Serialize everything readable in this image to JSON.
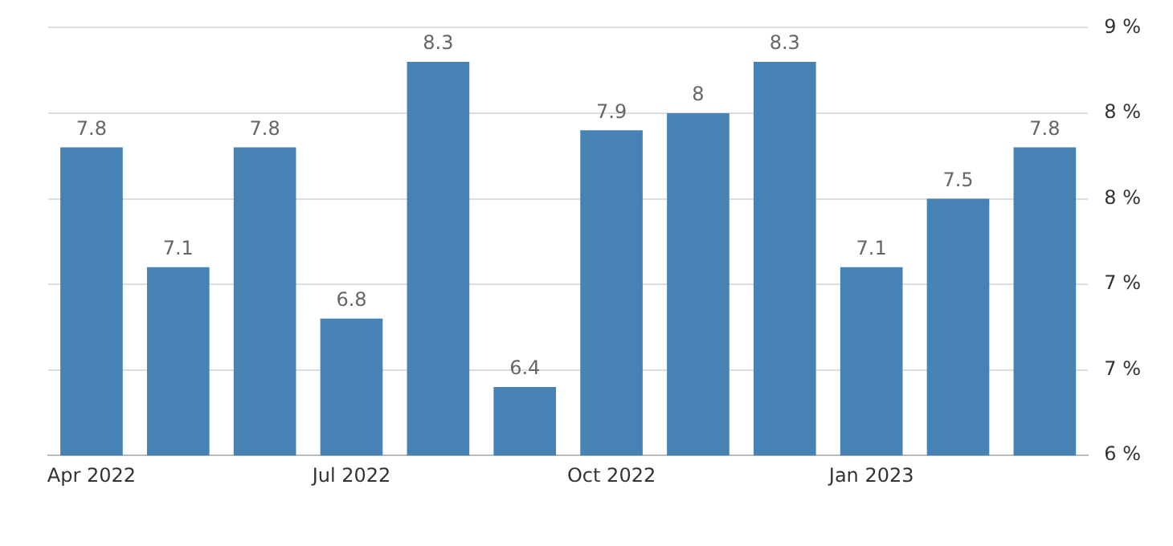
{
  "chart_data": {
    "type": "bar",
    "categories": [
      "Apr 2022",
      null,
      null,
      "Jul 2022",
      null,
      null,
      "Oct 2022",
      null,
      null,
      "Jan 2023",
      null,
      null
    ],
    "values": [
      7.8,
      7.1,
      7.8,
      6.8,
      8.3,
      6.4,
      7.9,
      8,
      8.3,
      7.1,
      7.5,
      7.8
    ],
    "color": "#4682b4",
    "ylim": [
      6,
      8.5
    ],
    "yticks": [
      {
        "value": 6,
        "label": "6 %"
      },
      {
        "value": 6.5,
        "label": "7 %"
      },
      {
        "value": 7,
        "label": "7 %"
      },
      {
        "value": 7.5,
        "label": "8 %"
      },
      {
        "value": 8,
        "label": "8 %"
      },
      {
        "value": 8.5,
        "label": "9 %"
      }
    ],
    "grid": "y",
    "data_labels": true,
    "legend": false
  }
}
